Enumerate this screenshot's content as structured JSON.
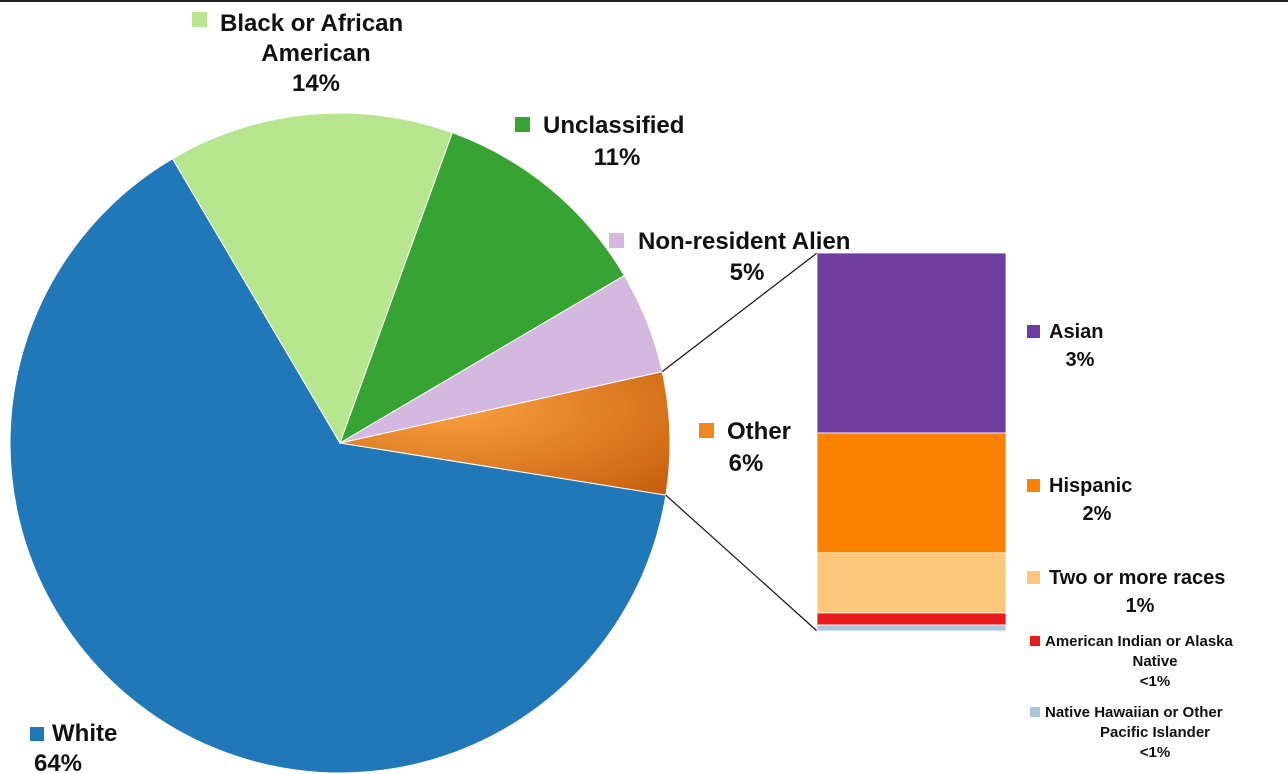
{
  "chart_data": {
    "type": "pie",
    "subtype": "bar-of-pie",
    "title": "",
    "pie": {
      "categories": [
        "White",
        "Black or African American",
        "Unclassified",
        "Non-resident Alien",
        "Other"
      ],
      "values": [
        64,
        14,
        11,
        5,
        6
      ],
      "display_labels": [
        "64%",
        "14%",
        "11%",
        "5%",
        "6%"
      ],
      "colors": [
        "#2178b8",
        "#b8e68e",
        "#37a332",
        "#d4b8e0",
        "#f0861c"
      ]
    },
    "breakdown": {
      "parent": "Other",
      "categories": [
        "Asian",
        "Hispanic",
        "Two or more races",
        "American Indian or Alaska Native",
        "Native Hawaiian or Other Pacific Islander"
      ],
      "values": [
        3,
        2,
        1,
        0.2,
        0.1
      ],
      "display_labels": [
        "3%",
        "2%",
        "1%",
        "<1%",
        "<1%"
      ],
      "colors": [
        "#6f3da0",
        "#fb8200",
        "#fcc77a",
        "#e8191c",
        "#a9c6de"
      ]
    },
    "legend": "inline-labels"
  }
}
